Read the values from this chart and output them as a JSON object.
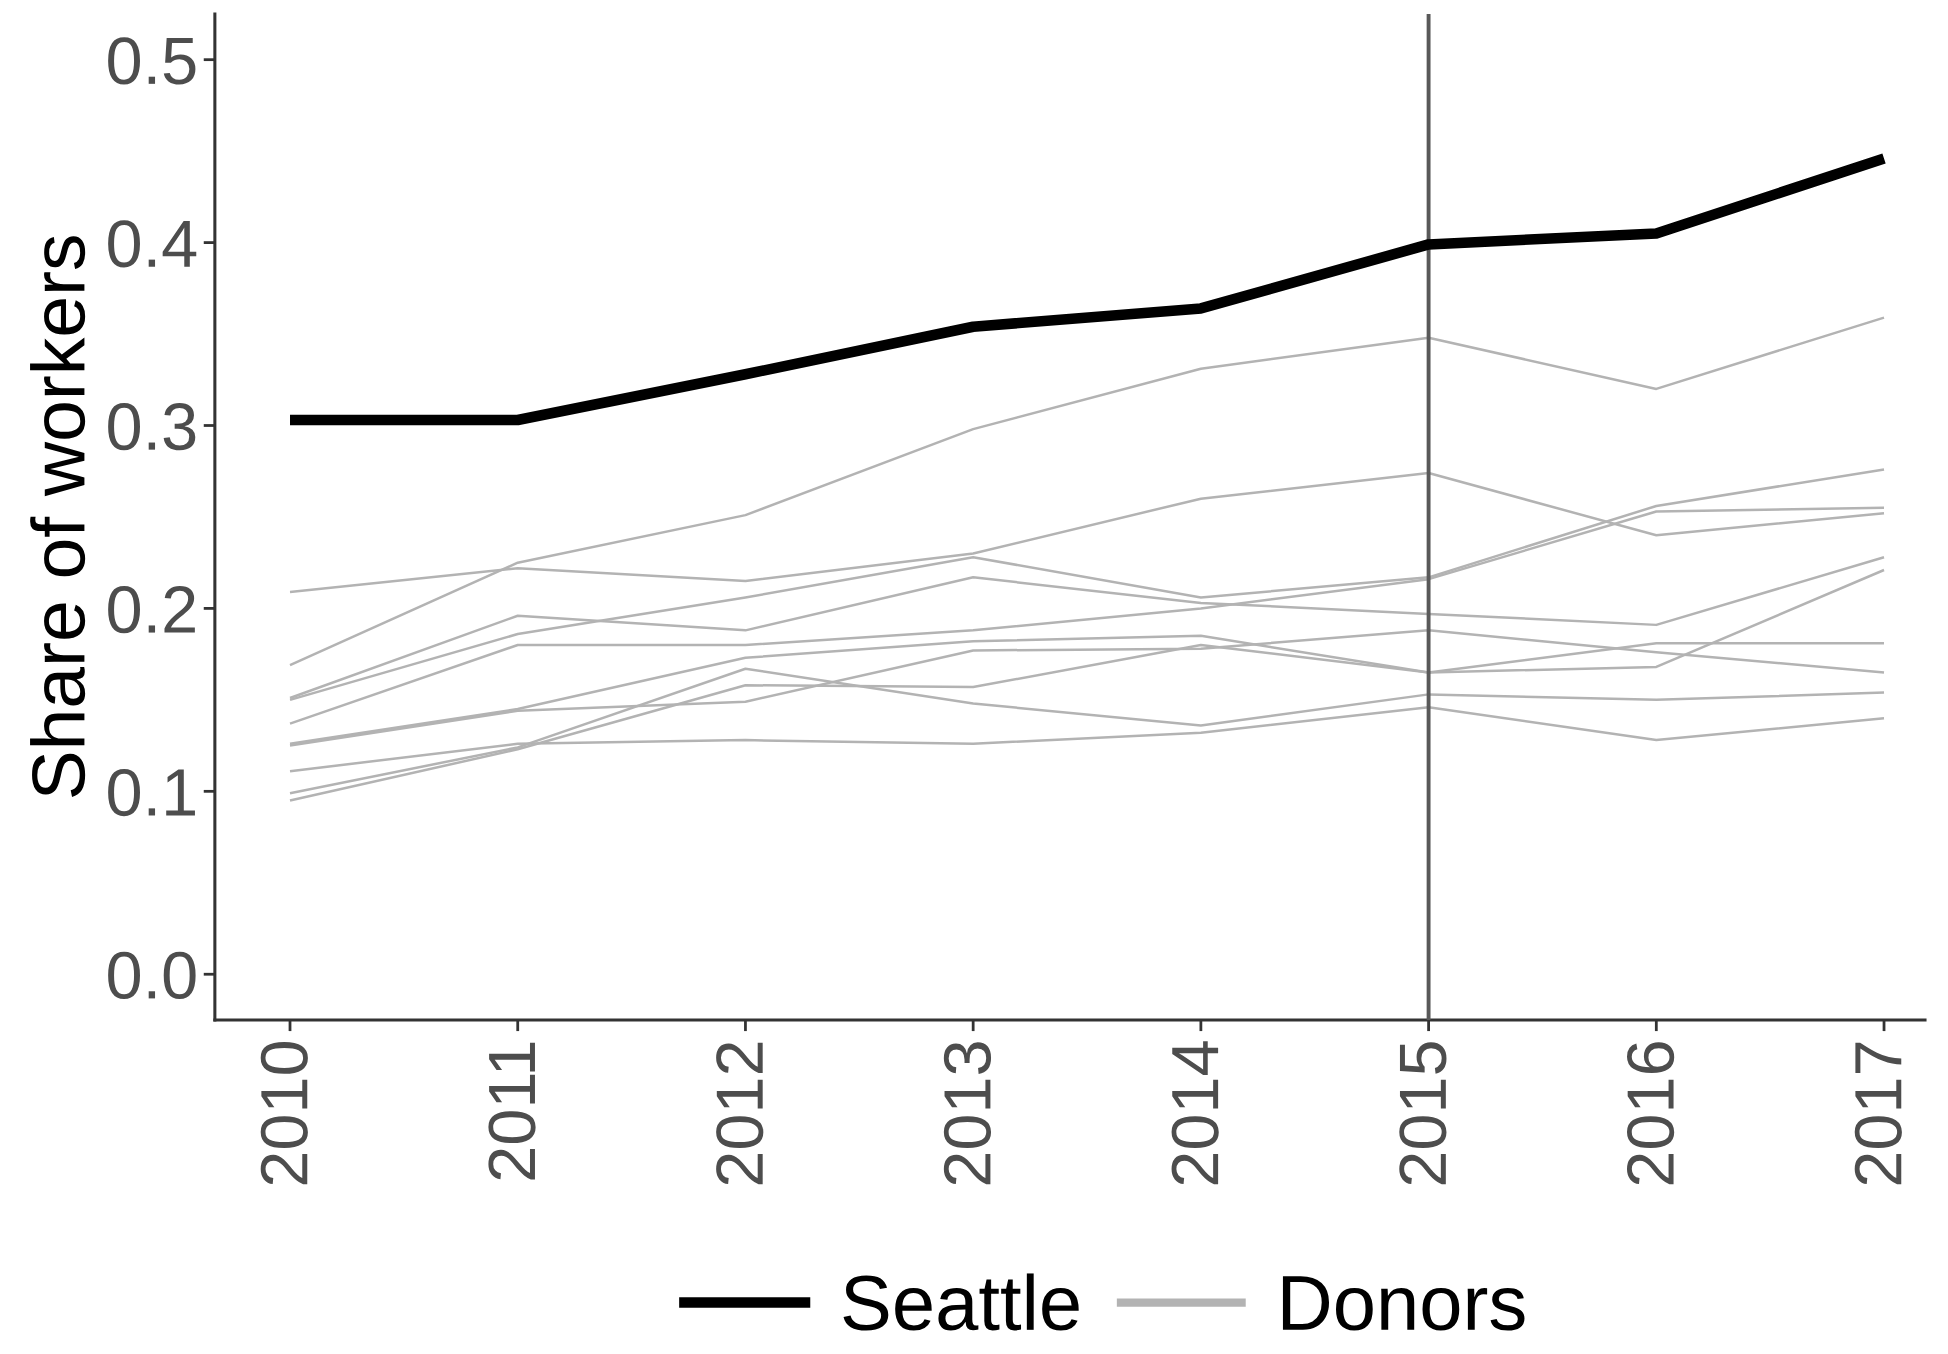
{
  "chart_data": {
    "type": "line",
    "ylabel": "Share of workers",
    "x": [
      2010,
      2011,
      2012,
      2013,
      2014,
      2015,
      2016,
      2017
    ],
    "xlim": [
      2009.67,
      2017.18
    ],
    "xticks": [
      2010,
      2011,
      2012,
      2013,
      2014,
      2015,
      2016,
      2017
    ],
    "ylim": [
      -0.025,
      0.525
    ],
    "yticks": [
      {
        "value": 0,
        "label": "0.0"
      },
      0.1,
      0.2,
      0.3,
      0.4,
      0.5
    ],
    "series": [
      {
        "name": "Seattle",
        "color": "#000000",
        "values": [
          0.303,
          0.303,
          0.328,
          0.354,
          0.364,
          0.399,
          0.405,
          0.446
        ]
      },
      {
        "name": "Donors",
        "color": "#b3b3b3",
        "values": [
          0.209,
          0.222,
          0.215,
          0.23,
          0.26,
          0.274,
          0.24,
          0.252
        ]
      },
      {
        "color": "#b3b3b3",
        "values": [
          0.169,
          0.225,
          0.251,
          0.298,
          0.331,
          0.348,
          0.32,
          0.359
        ]
      },
      {
        "color": "#b3b3b3",
        "values": [
          0.151,
          0.196,
          0.188,
          0.217,
          0.203,
          0.197,
          0.191,
          0.228
        ]
      },
      {
        "color": "#b3b3b3",
        "values": [
          0.15,
          0.186,
          0.206,
          0.228,
          0.206,
          0.217,
          0.256,
          0.276
        ]
      },
      {
        "color": "#b3b3b3",
        "values": [
          0.137,
          0.18,
          0.18,
          0.188,
          0.2,
          0.216,
          0.253,
          0.255
        ]
      },
      {
        "color": "#b3b3b3",
        "values": [
          0.126,
          0.145,
          0.173,
          0.182,
          0.185,
          0.165,
          0.181,
          0.181
        ]
      },
      {
        "color": "#b3b3b3",
        "values": [
          0.125,
          0.144,
          0.149,
          0.177,
          0.178,
          0.188,
          0.176,
          0.165
        ]
      },
      {
        "color": "#b3b3b3",
        "values": [
          0.111,
          0.126,
          0.128,
          0.126,
          0.132,
          0.146,
          0.128,
          0.14
        ]
      },
      {
        "color": "#b3b3b3",
        "values": [
          0.099,
          0.124,
          0.167,
          0.148,
          0.136,
          0.153,
          0.15,
          0.154
        ]
      },
      {
        "color": "#b3b3b3",
        "values": [
          0.095,
          0.123,
          0.158,
          0.157,
          0.18,
          0.165,
          0.168,
          0.221
        ]
      }
    ],
    "ref_lines": [
      {
        "axis": "x",
        "value": 2015,
        "color": "#595959"
      }
    ],
    "legend": "bottom",
    "line_style": "solid"
  }
}
